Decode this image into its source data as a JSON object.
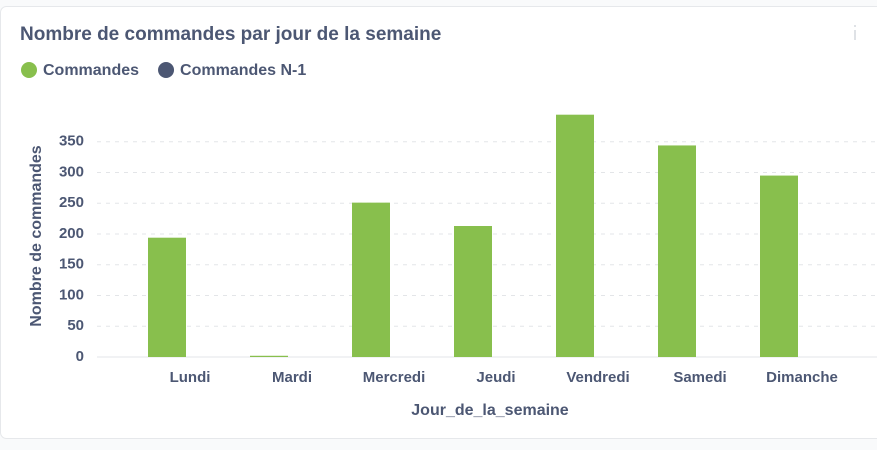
{
  "chart_data": {
    "type": "bar",
    "title": "Nombre de commandes par jour de la semaine",
    "x_label": "Jour_de_la_semaine",
    "y_label": "Nombre de commandes",
    "categories": [
      "Lundi",
      "Mardi",
      "Mercredi",
      "Jeudi",
      "Vendredi",
      "Samedi",
      "Dimanche"
    ],
    "series": [
      {
        "name": "Commandes",
        "color": "#88bf4d",
        "values": [
          194,
          2,
          251,
          213,
          394,
          344,
          295
        ]
      },
      {
        "name": "Commandes N-1",
        "color": "#4c5773",
        "values": [
          null,
          null,
          null,
          null,
          null,
          null,
          null
        ]
      }
    ],
    "ylim": [
      0,
      400
    ],
    "yticks": [
      0,
      50,
      100,
      150,
      200,
      250,
      300,
      350
    ],
    "grid": true
  }
}
